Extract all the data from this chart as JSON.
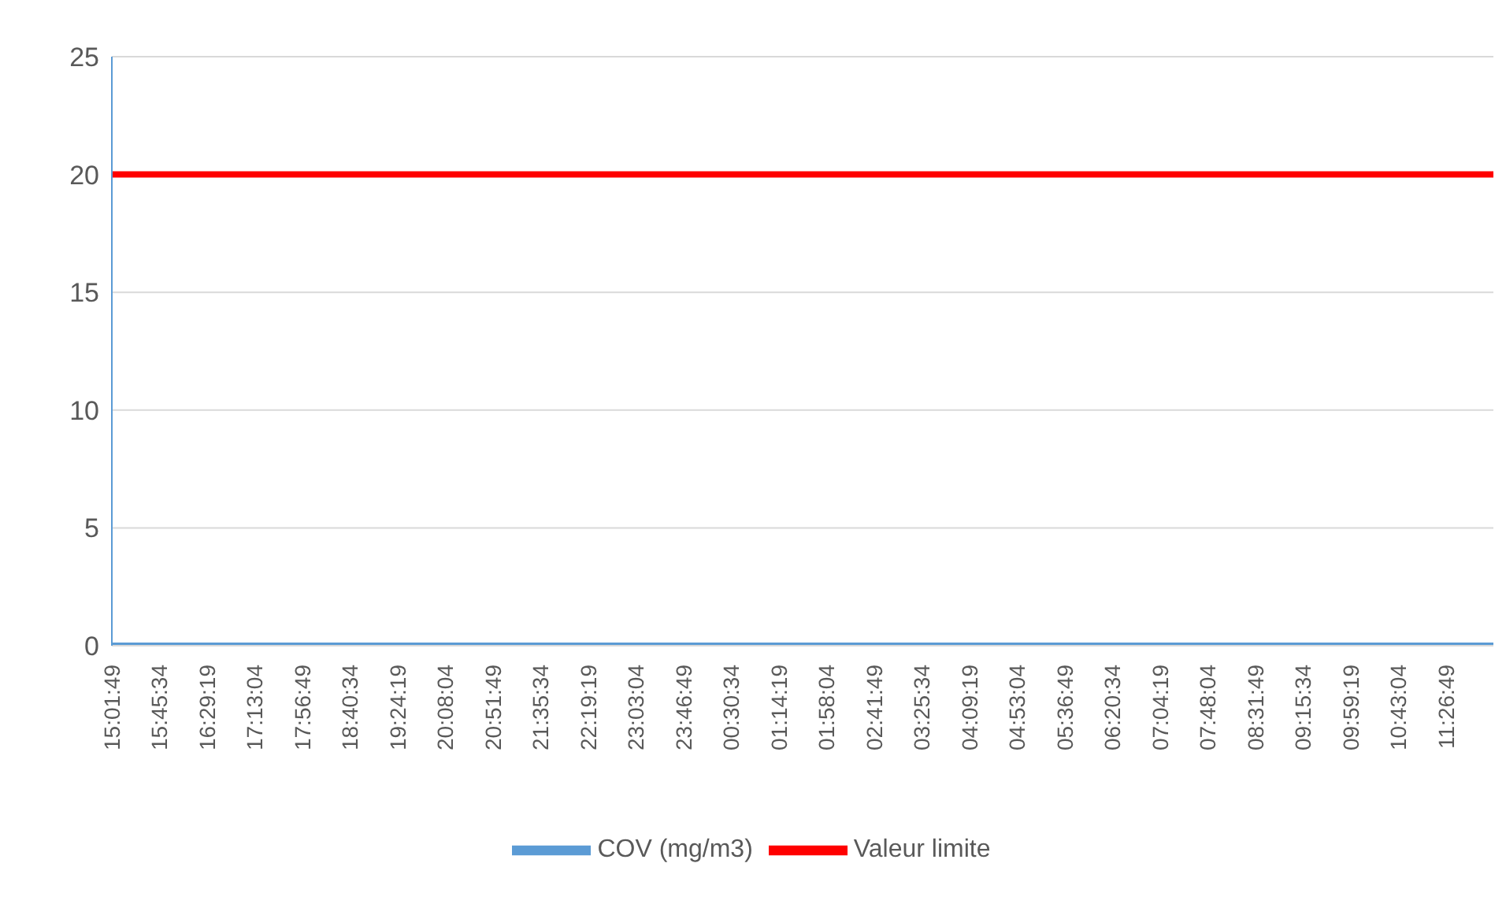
{
  "chart_data": {
    "type": "line",
    "categories": [
      "15:01:49",
      "15:45:34",
      "16:29:19",
      "17:13:04",
      "17:56:49",
      "18:40:34",
      "19:24:19",
      "20:08:04",
      "20:51:49",
      "21:35:34",
      "22:19:19",
      "23:03:04",
      "23:46:49",
      "00:30:34",
      "01:14:19",
      "01:58:04",
      "02:41:49",
      "03:25:34",
      "04:09:19",
      "04:53:04",
      "05:36:49",
      "06:20:34",
      "07:04:19",
      "07:48:04",
      "08:31:49",
      "09:15:34",
      "09:59:19",
      "10:43:04",
      "11:26:49",
      null
    ],
    "series": [
      {
        "name": "COV (mg/m3)",
        "color": "#5b9bd5",
        "values": [
          0,
          0,
          0,
          0,
          0,
          0,
          0,
          0,
          0,
          0,
          0,
          0,
          0,
          0,
          0,
          0,
          0,
          0,
          0,
          0,
          0,
          0,
          0,
          0,
          0,
          0,
          0,
          0,
          0,
          0
        ]
      },
      {
        "name": "Valeur limite",
        "color": "#ff0000",
        "values": [
          20,
          20,
          20,
          20,
          20,
          20,
          20,
          20,
          20,
          20,
          20,
          20,
          20,
          20,
          20,
          20,
          20,
          20,
          20,
          20,
          20,
          20,
          20,
          20,
          20,
          20,
          20,
          20,
          20,
          20
        ]
      }
    ],
    "ylim": [
      0,
      25
    ],
    "yticks": [
      0,
      5,
      10,
      15,
      20,
      25
    ],
    "grid": "y",
    "legend": "bottom",
    "marker": "none",
    "line_style": "solid"
  }
}
